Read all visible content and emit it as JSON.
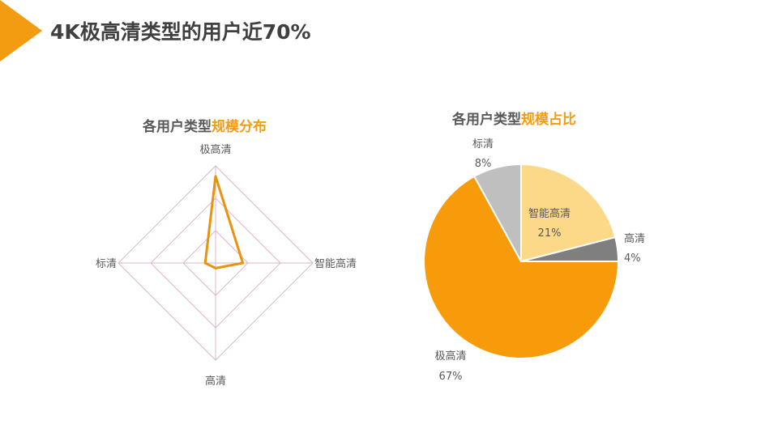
{
  "page": {
    "title": "4K极高清类型的用户近70%",
    "accent_color": "#f39c12"
  },
  "chart_data": [
    {
      "type": "radar",
      "title_part1": "各用户类型",
      "title_part2": "规模分布",
      "axes": [
        "极高清",
        "智能高清",
        "高清",
        "标清"
      ],
      "values": [
        67,
        21,
        4,
        8
      ],
      "rings": 3,
      "ring_max": 75,
      "line_color": "#e8930c",
      "grid_color": "#d9b7c9"
    },
    {
      "type": "pie",
      "title_part1": "各用户类型",
      "title_part2": "规模占比",
      "slices": [
        {
          "label": "智能高清",
          "value": 21,
          "pct": "21%",
          "color": "#fcd988"
        },
        {
          "label": "高清",
          "value": 4,
          "pct": "4%",
          "color": "#7f7f7f"
        },
        {
          "label": "极高清",
          "value": 67,
          "pct": "67%",
          "color": "#f79b0a"
        },
        {
          "label": "标清",
          "value": 8,
          "pct": "8%",
          "color": "#bfbfbf"
        }
      ]
    }
  ]
}
